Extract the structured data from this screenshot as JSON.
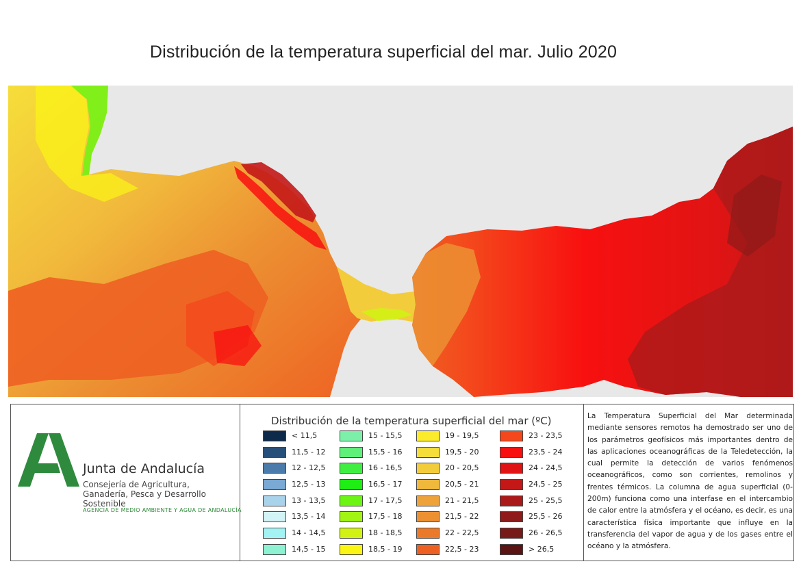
{
  "title": "Distribución de la temperatura superficial del mar. Julio 2020",
  "logo": {
    "name": "Junta de Andalucía",
    "subtitle": "Consejería de Agricultura, Ganadería, Pesca y Desarrollo Sostenible",
    "agency": "AGENCIA DE MEDIO AMBIENTE Y AGUA DE ANDALUCÍA"
  },
  "legend": {
    "title": "Distribución de la temperatura superficial del mar (ºC)",
    "items": [
      {
        "label": "< 11,5",
        "color": "#0d2a4a"
      },
      {
        "label": "11,5 - 12",
        "color": "#26507a"
      },
      {
        "label": "12 - 12,5",
        "color": "#4a7bab"
      },
      {
        "label": "12,5 - 13",
        "color": "#79a9d4"
      },
      {
        "label": "13 - 13,5",
        "color": "#a9d3ea"
      },
      {
        "label": "13,5 - 14",
        "color": "#d2f4f7"
      },
      {
        "label": "14 - 14,5",
        "color": "#a3f2f4"
      },
      {
        "label": "14,5 - 15",
        "color": "#8ef2d2"
      },
      {
        "label": "15 - 15,5",
        "color": "#7cf0a8"
      },
      {
        "label": "15,5 - 16",
        "color": "#5ff07a"
      },
      {
        "label": "16 - 16,5",
        "color": "#40ee42"
      },
      {
        "label": "16,5 - 17",
        "color": "#1eee14"
      },
      {
        "label": "17 - 17,5",
        "color": "#6cf414"
      },
      {
        "label": "17,5 - 18",
        "color": "#a2f414"
      },
      {
        "label": "18 - 18,5",
        "color": "#d2f214"
      },
      {
        "label": "18,5 - 19",
        "color": "#fbf514"
      },
      {
        "label": "19 - 19,5",
        "color": "#fbeb2a"
      },
      {
        "label": "19,5 - 20",
        "color": "#f6de3a"
      },
      {
        "label": "20 - 20,5",
        "color": "#f3cc3c"
      },
      {
        "label": "20,5 - 21",
        "color": "#f1b93c"
      },
      {
        "label": "21 - 21,5",
        "color": "#eea33a"
      },
      {
        "label": "21,5 - 22",
        "color": "#ec9032"
      },
      {
        "label": "22 - 22,5",
        "color": "#ea7a2a"
      },
      {
        "label": "22,5 - 23",
        "color": "#ee6022"
      },
      {
        "label": "23 - 23,5",
        "color": "#f4481c"
      },
      {
        "label": "23,5 - 24",
        "color": "#f81010"
      },
      {
        "label": "24 - 24,5",
        "color": "#e01414"
      },
      {
        "label": "24,5 - 25",
        "color": "#c41818"
      },
      {
        "label": "25 - 25,5",
        "color": "#aa1a1a"
      },
      {
        "label": "25,5 - 26",
        "color": "#8e1a1a"
      },
      {
        "label": "26 - 26,5",
        "color": "#761a1a"
      },
      {
        "label": "> 26,5",
        "color": "#5a1414"
      }
    ]
  },
  "description": "La Temperatura Superficial del Mar determinada mediante sensores remotos ha demostrado ser uno de los parámetros geofísicos más importantes dentro de las aplicaciones oceanográficas de la Teledetección, la cual permite la detección de varios fenómenos oceanográficos, como son corrientes, remolinos y frentes térmicos. La columna de agua superficial (0-200m) funciona como una interfase en el intercambio de calor entre la atmósfera y el océano, es decir, es una característica física importante que influye en la transferencia del vapor de agua y de los gases entre el océano y la atmósfera.",
  "map": {
    "land_color": "#e8e8e8",
    "sea_colors": {
      "atlantic_cool": "#f6de3a",
      "atlantic_green": "#40ee42",
      "atlantic_warm": "#ec9032",
      "atlantic_hot": "#ee6022",
      "strait": "#f3cc3c",
      "alboran": "#f81010",
      "alboran_dark": "#c41818",
      "alboran_darkest": "#8e1a1a"
    }
  }
}
